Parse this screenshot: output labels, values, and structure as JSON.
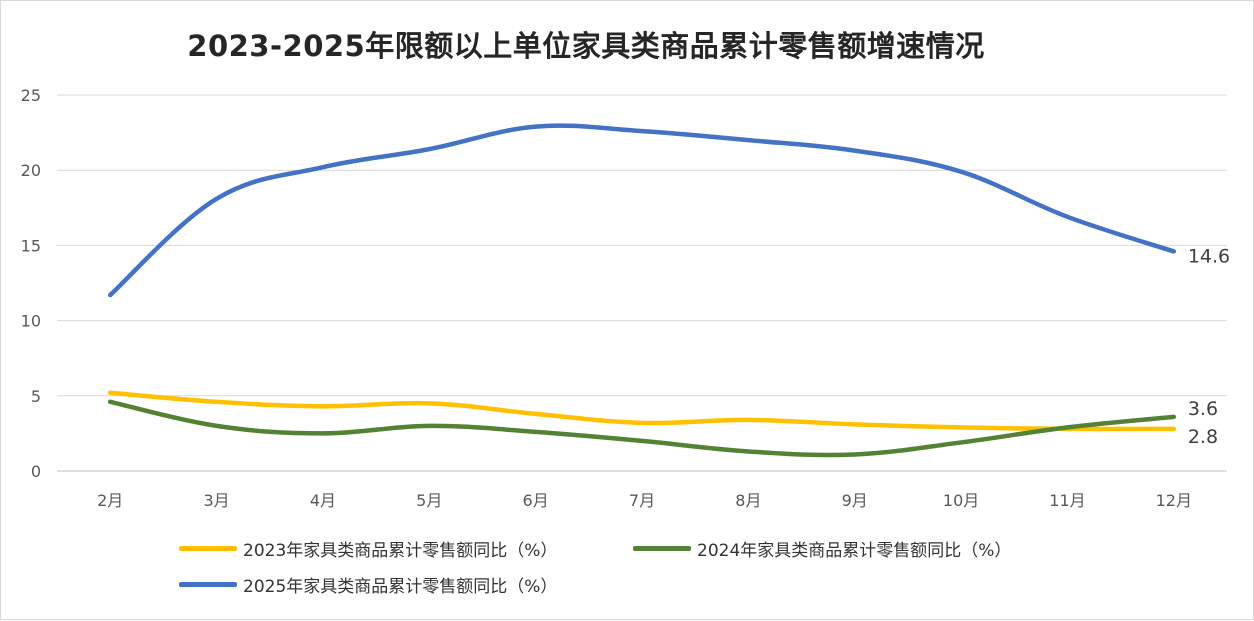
{
  "chart_data": {
    "type": "line",
    "title": "2023-2025年限额以上单位家具类商品累计零售额增速情况",
    "xlabel": "",
    "ylabel": "",
    "categories": [
      "2月",
      "3月",
      "4月",
      "5月",
      "6月",
      "7月",
      "8月",
      "9月",
      "10月",
      "11月",
      "12月"
    ],
    "ylim": [
      0,
      25
    ],
    "yticks": [
      0,
      5,
      10,
      15,
      20,
      25
    ],
    "grid": true,
    "legend_position": "bottom",
    "series": [
      {
        "name": "2023年家具类商品累计零售额同比（%）",
        "color": "#FFC000",
        "values": [
          5.2,
          4.6,
          4.3,
          4.5,
          3.8,
          3.2,
          3.4,
          3.1,
          2.9,
          2.8,
          2.8
        ],
        "end_label": "2.8"
      },
      {
        "name": "2024年家具类商品累计零售额同比（%）",
        "color": "#548235",
        "values": [
          4.6,
          3.0,
          2.5,
          3.0,
          2.6,
          2.0,
          1.3,
          1.1,
          1.9,
          2.9,
          3.6
        ],
        "end_label": "3.6"
      },
      {
        "name": "2025年家具类商品累计零售额同比（%）",
        "color": "#4472C4",
        "values": [
          11.7,
          18.1,
          20.2,
          21.4,
          22.9,
          22.6,
          22.0,
          21.3,
          19.9,
          16.9,
          14.6
        ],
        "end_label": "14.6"
      }
    ]
  },
  "colors": {
    "grid": "#d9d9d9",
    "axis": "#bfbfbf",
    "tick_text": "#595959"
  }
}
